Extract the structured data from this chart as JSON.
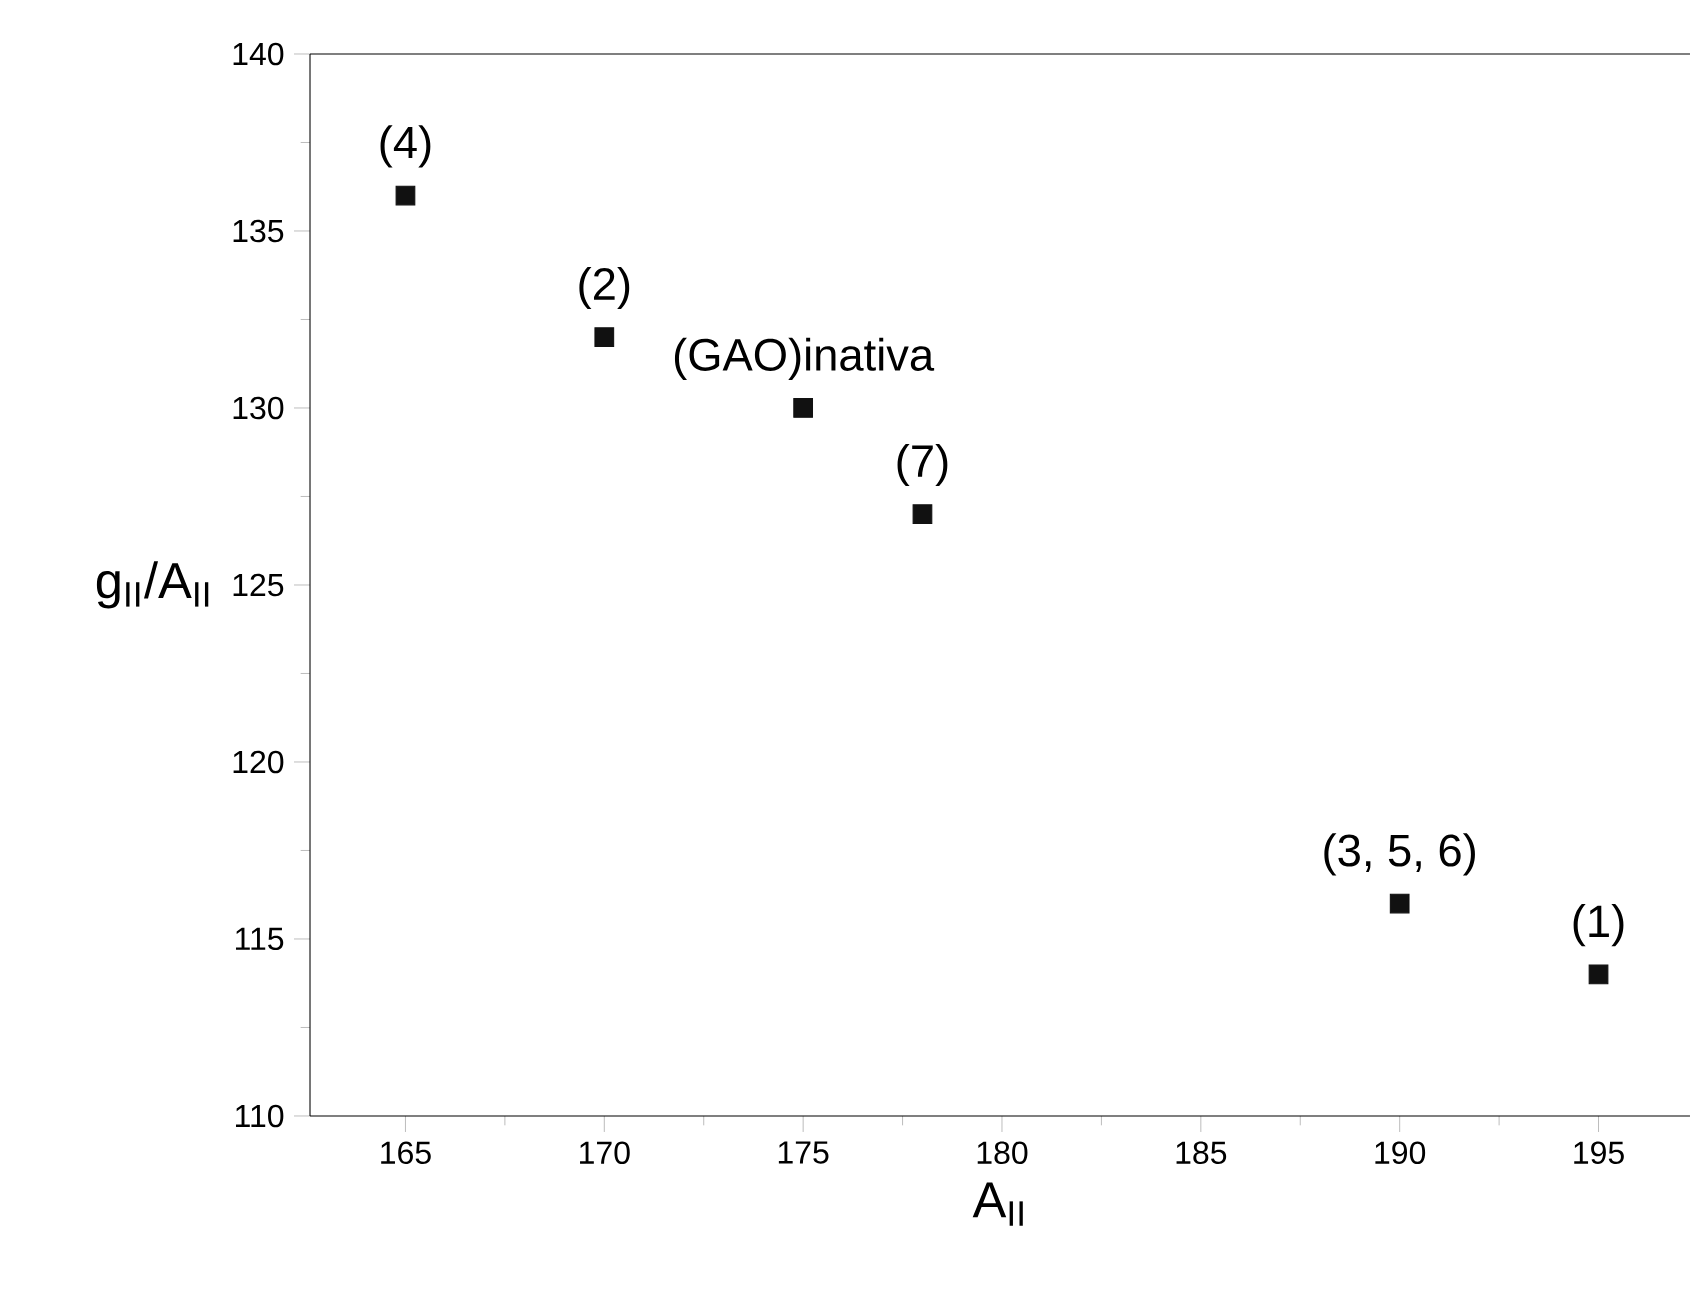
{
  "chart_data": {
    "type": "scatter",
    "xlabel": "A$_{II}$",
    "ylabel": "g$_{II}$/A$_{II}$",
    "x": [
      165,
      170,
      175,
      178,
      190,
      195
    ],
    "values": [
      136,
      132,
      130,
      127,
      116,
      114
    ],
    "color": "#111111",
    "marker": "square",
    "grid": false,
    "xlim": [
      162.6,
      197.3
    ],
    "ylim": [
      110,
      140
    ],
    "xticks": [
      165,
      170,
      175,
      180,
      185,
      190,
      195
    ],
    "yticks": [
      110,
      115,
      120,
      125,
      130,
      135,
      140
    ],
    "annotations": [
      {
        "text": "(4)",
        "x": 165,
        "y": 136
      },
      {
        "text": "(2)",
        "x": 170,
        "y": 132
      },
      {
        "text": "(GAO)inativa",
        "x": 175,
        "y": 130
      },
      {
        "text": "(7)",
        "x": 178,
        "y": 127
      },
      {
        "text": "(3, 5, 6)",
        "x": 190,
        "y": 116
      },
      {
        "text": "(1)",
        "x": 195,
        "y": 114
      }
    ]
  }
}
